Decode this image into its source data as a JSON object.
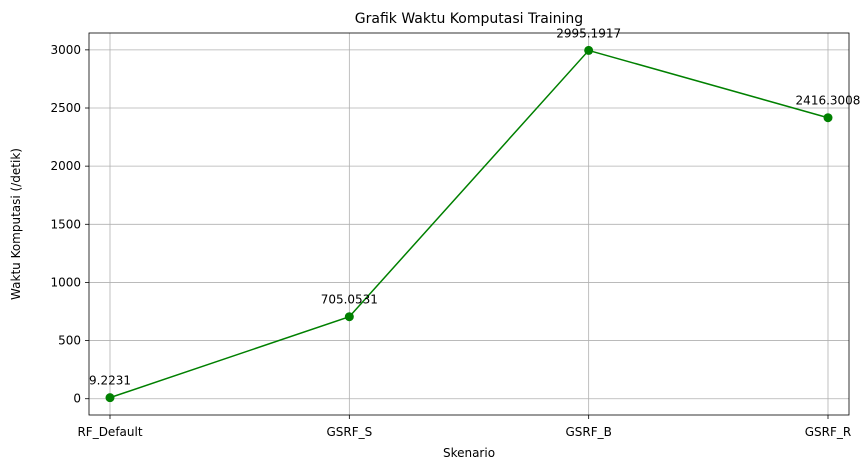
{
  "chart_data": {
    "type": "line",
    "title": "Grafik Waktu Komputasi Training",
    "xlabel": "Skenario",
    "ylabel": "Waktu Komputasi (/detik)",
    "categories": [
      "RF_Default",
      "GSRF_S",
      "GSRF_B",
      "GSRF_R"
    ],
    "values": [
      9.2231,
      705.0531,
      2995.1917,
      2416.3008
    ],
    "data_labels": [
      "9.2231",
      "705.0531",
      "2995.1917",
      "2416.3008"
    ],
    "y_ticks": [
      0,
      500,
      1000,
      1500,
      2000,
      2500,
      3000
    ],
    "y_tick_labels": [
      "0",
      "500",
      "1000",
      "1500",
      "2000",
      "2500",
      "3000"
    ],
    "ylim": [
      -140,
      3145
    ],
    "grid": true,
    "marker": "circle",
    "line_color": "#008000"
  }
}
